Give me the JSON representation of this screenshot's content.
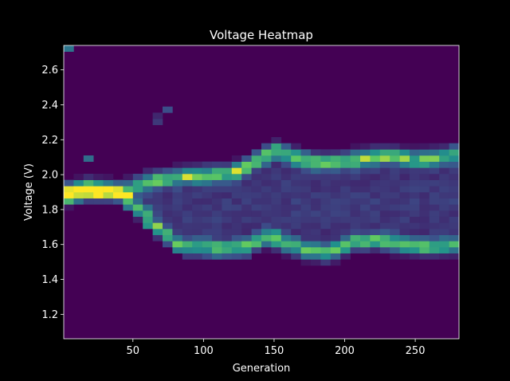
{
  "chart_data": {
    "type": "heatmap",
    "title": "Voltage Heatmap",
    "xlabel": "Generation",
    "ylabel": "Voltage (V)",
    "xlim": [
      1,
      281
    ],
    "ylim": [
      1.06,
      2.74
    ],
    "x_ticks": [
      50,
      100,
      150,
      200,
      250
    ],
    "x_tick_labels": [
      "50",
      "100",
      "150",
      "200",
      "250"
    ],
    "y_ticks": [
      1.2,
      1.4,
      1.6,
      1.8,
      2.0,
      2.2,
      2.4,
      2.6
    ],
    "y_tick_labels": [
      "1.2",
      "1.4",
      "1.6",
      "1.8",
      "2.0",
      "2.2",
      "2.4",
      "2.6"
    ],
    "colormap": "viridis",
    "colors": {
      "background": "#000000",
      "text": "#ffffff",
      "low": "#440154",
      "mid": "#21918c",
      "high": "#fde725"
    },
    "grid": false,
    "legend": "none",
    "generation_bins": 40,
    "voltage_bins": 48,
    "band_upper": [
      [
        1,
        1.9
      ],
      [
        20,
        1.93
      ],
      [
        40,
        1.9
      ],
      [
        60,
        1.96
      ],
      [
        80,
        1.99
      ],
      [
        100,
        2.0
      ],
      [
        120,
        2.01
      ],
      [
        135,
        2.07
      ],
      [
        150,
        2.14
      ],
      [
        165,
        2.1
      ],
      [
        180,
        2.07
      ],
      [
        200,
        2.08
      ],
      [
        215,
        2.1
      ],
      [
        230,
        2.11
      ],
      [
        250,
        2.09
      ],
      [
        265,
        2.1
      ],
      [
        281,
        2.12
      ]
    ],
    "band_lower": [
      [
        1,
        1.88
      ],
      [
        20,
        1.9
      ],
      [
        40,
        1.9
      ],
      [
        50,
        1.82
      ],
      [
        60,
        1.77
      ],
      [
        70,
        1.67
      ],
      [
        85,
        1.58
      ],
      [
        100,
        1.58
      ],
      [
        115,
        1.57
      ],
      [
        130,
        1.58
      ],
      [
        145,
        1.64
      ],
      [
        160,
        1.6
      ],
      [
        175,
        1.56
      ],
      [
        190,
        1.55
      ],
      [
        205,
        1.61
      ],
      [
        220,
        1.62
      ],
      [
        240,
        1.6
      ],
      [
        260,
        1.58
      ],
      [
        281,
        1.6
      ]
    ],
    "hotspots": [
      {
        "generation": 3,
        "voltage": 2.71,
        "intensity": 0.4
      },
      {
        "generation": 3,
        "voltage": 1.84,
        "intensity": 0.75
      },
      {
        "generation": 17,
        "voltage": 1.92,
        "intensity": 1.0
      },
      {
        "generation": 31,
        "voltage": 1.92,
        "intensity": 1.0
      },
      {
        "generation": 24,
        "voltage": 1.9,
        "intensity": 0.6
      },
      {
        "generation": 38,
        "voltage": 1.93,
        "intensity": 0.55
      },
      {
        "generation": 17,
        "voltage": 2.08,
        "intensity": 0.35
      },
      {
        "generation": 62,
        "voltage": 1.72,
        "intensity": 0.55
      },
      {
        "generation": 73,
        "voltage": 2.38,
        "intensity": 0.2
      },
      {
        "generation": 66,
        "voltage": 2.32,
        "intensity": 0.15
      },
      {
        "generation": 115,
        "voltage": 2.0,
        "intensity": 0.5
      },
      {
        "generation": 150,
        "voltage": 2.14,
        "intensity": 0.55
      },
      {
        "generation": 235,
        "voltage": 2.12,
        "intensity": 0.55
      },
      {
        "generation": 276,
        "voltage": 2.12,
        "intensity": 0.6
      },
      {
        "generation": 150,
        "voltage": 1.66,
        "intensity": 0.45
      },
      {
        "generation": 185,
        "voltage": 1.56,
        "intensity": 0.45
      },
      {
        "generation": 255,
        "voltage": 1.57,
        "intensity": 0.45
      }
    ]
  }
}
